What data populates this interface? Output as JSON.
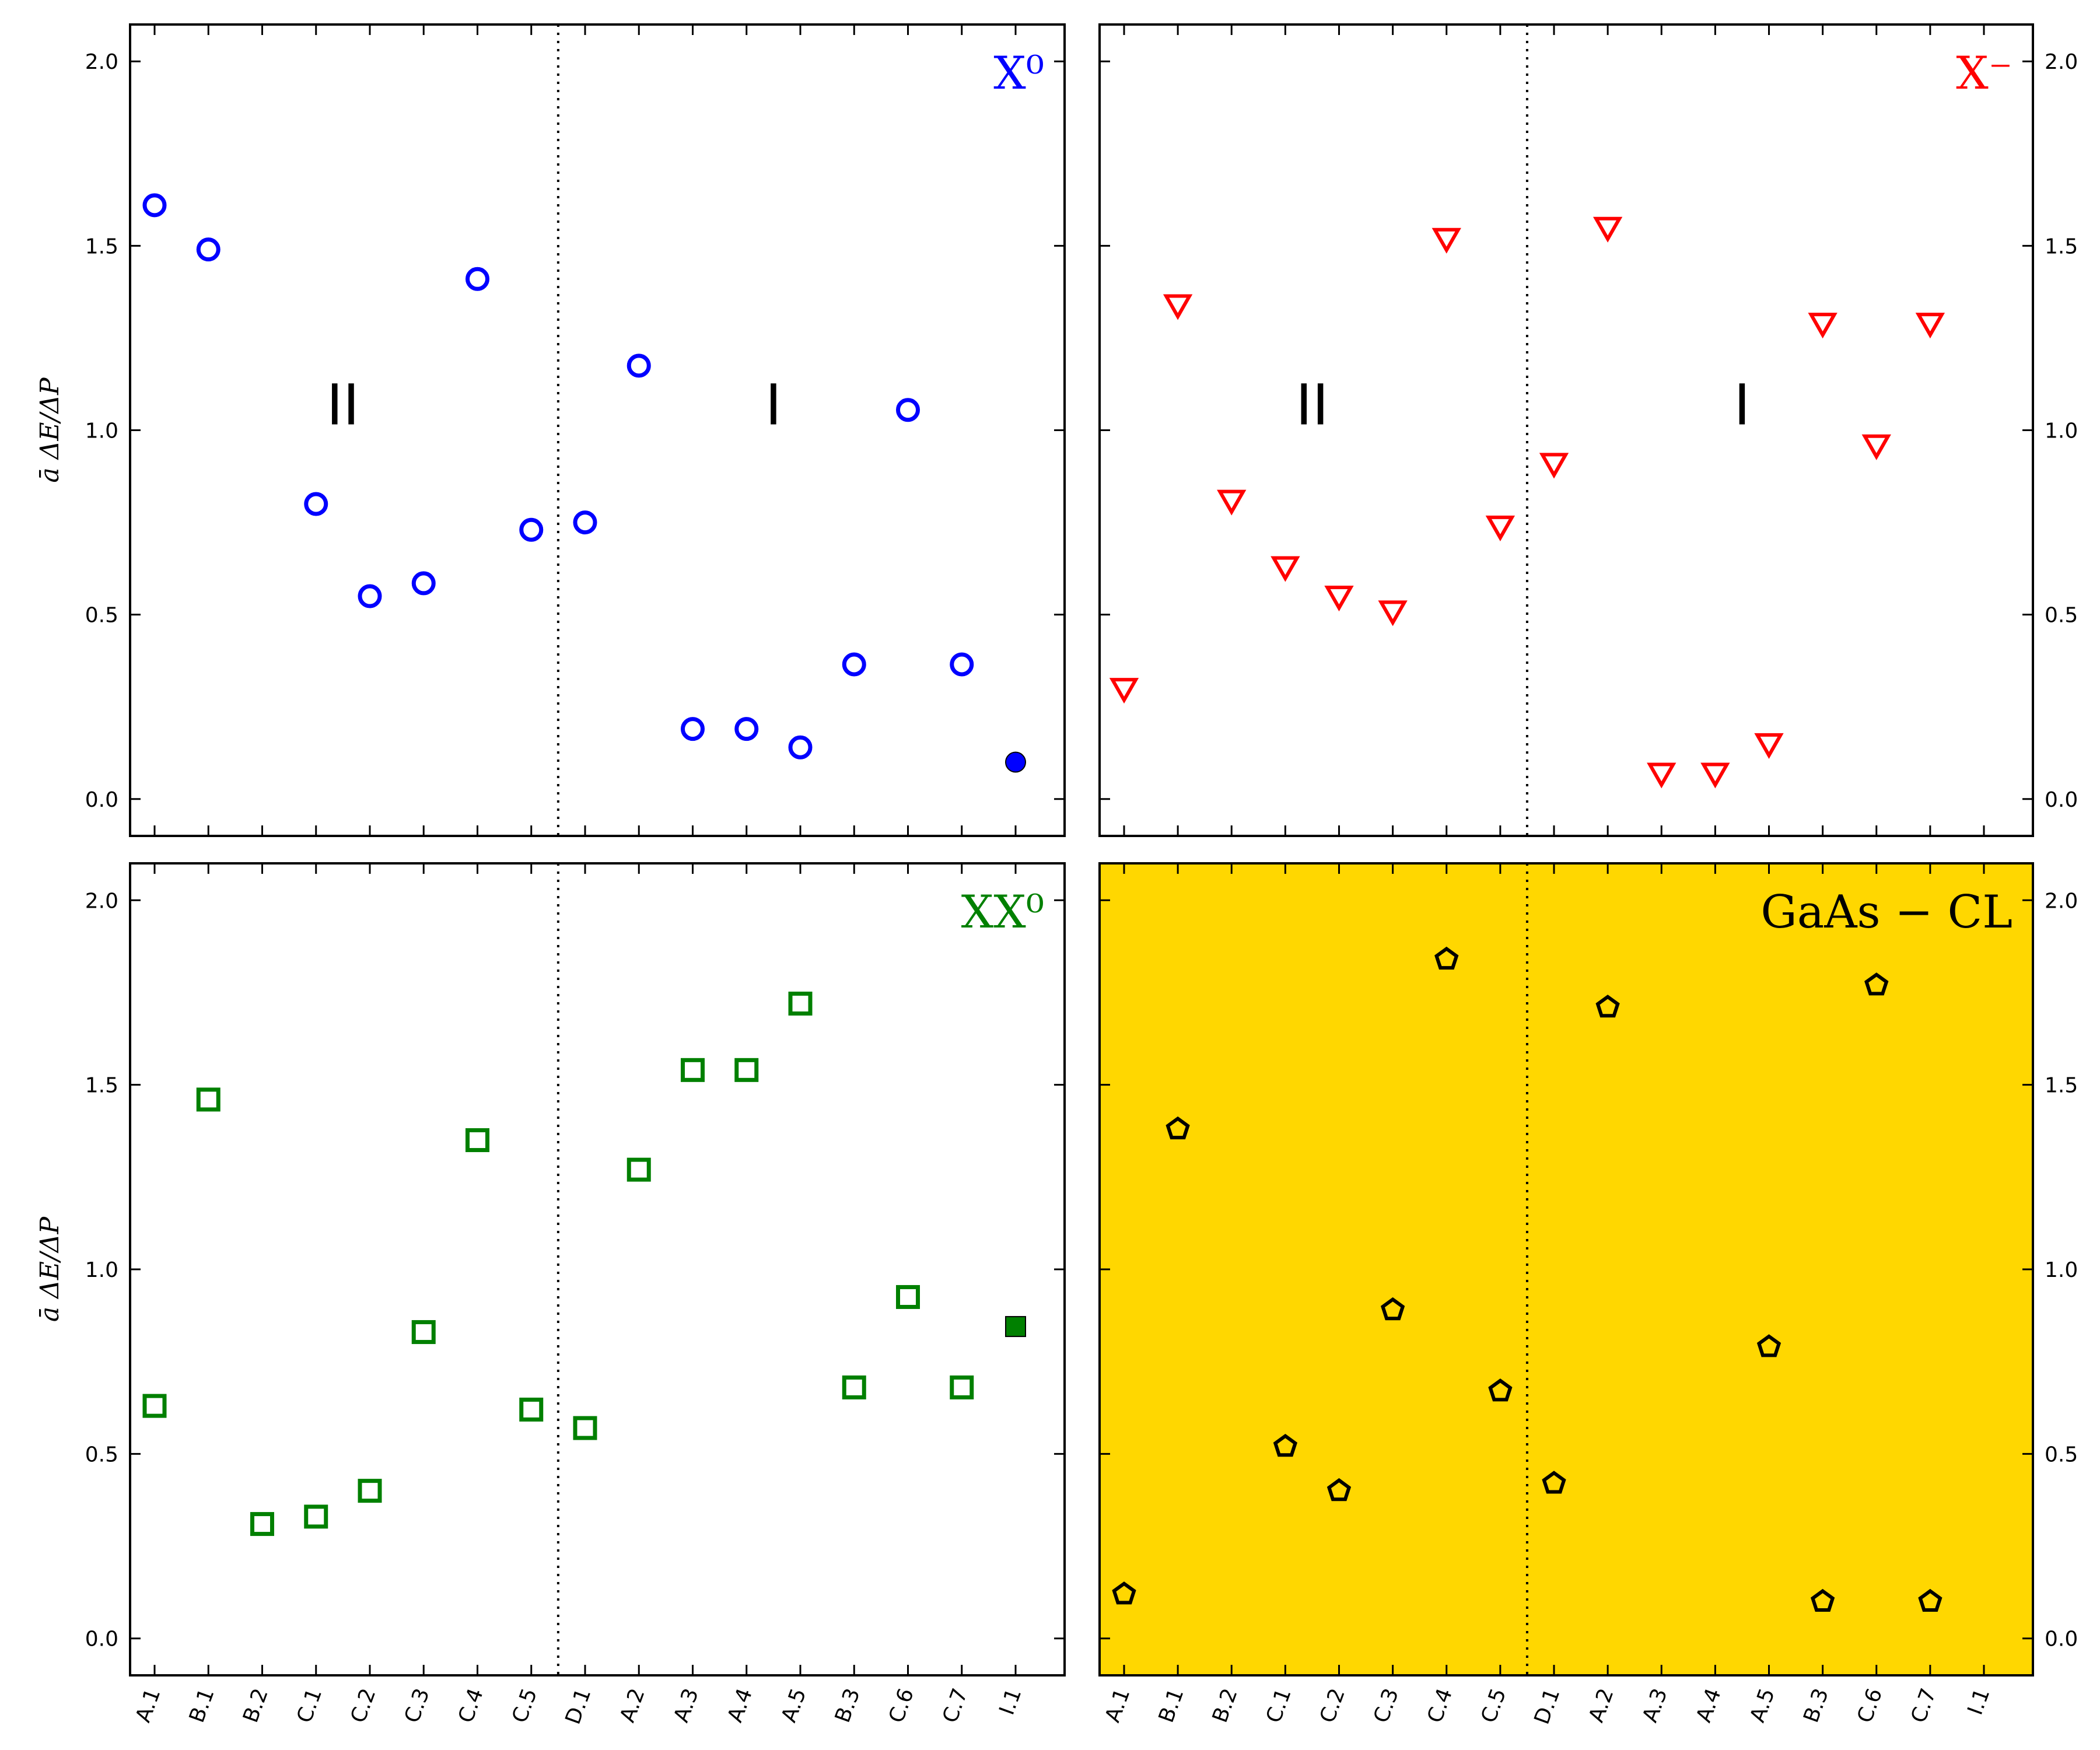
{
  "chart_data": {
    "type": "scatter",
    "categories": [
      "A.1",
      "B.1",
      "B.2",
      "C.1",
      "C.2",
      "C.3",
      "C.4",
      "C.5",
      "D.1",
      "A.2",
      "A.3",
      "A.4",
      "A.5",
      "B.3",
      "C.6",
      "C.7",
      "I.1"
    ],
    "ylim": [
      -0.1,
      2.1
    ],
    "yticks": [
      "0.0",
      "0.5",
      "1.0",
      "1.5",
      "2.0"
    ],
    "ylabel": "ā ΔE/ΔP",
    "divider_between": [
      "C.5",
      "D.1"
    ],
    "panels": [
      {
        "title": "X⁰",
        "color": "#0000ff",
        "marker": "circle",
        "background": "#ffffff",
        "region_labels": [
          "II",
          "I"
        ],
        "values": [
          1.61,
          1.49,
          null,
          0.8,
          0.55,
          0.585,
          1.41,
          0.73,
          0.75,
          1.175,
          0.19,
          0.19,
          0.14,
          0.365,
          1.055,
          0.365,
          0.1
        ],
        "filled": [
          "I.1"
        ]
      },
      {
        "title": "X⁻",
        "color": "#ff0000",
        "marker": "triangle-down",
        "background": "#ffffff",
        "region_labels": [
          "II",
          "I"
        ],
        "values": [
          0.3,
          1.34,
          0.81,
          0.63,
          0.55,
          0.51,
          1.52,
          0.74,
          0.91,
          1.55,
          0.07,
          0.07,
          0.15,
          1.29,
          0.96,
          1.29,
          null
        ],
        "filled": []
      },
      {
        "title": "XX⁰",
        "color": "#008000",
        "marker": "square",
        "background": "#ffffff",
        "region_labels": [],
        "values": [
          0.63,
          1.46,
          0.31,
          0.33,
          0.4,
          0.83,
          1.35,
          0.62,
          0.57,
          1.27,
          1.54,
          1.54,
          1.72,
          0.68,
          0.925,
          0.68,
          0.845
        ],
        "filled": [
          "I.1"
        ]
      },
      {
        "title": "GaAs − CL",
        "color": "#000000",
        "marker": "pentagon",
        "background": "#ffd700",
        "region_labels": [],
        "values": [
          0.12,
          1.38,
          null,
          0.52,
          0.4,
          0.89,
          1.84,
          0.67,
          0.42,
          1.71,
          null,
          null,
          0.79,
          0.1,
          1.77,
          0.1,
          null
        ],
        "filled": []
      }
    ]
  }
}
